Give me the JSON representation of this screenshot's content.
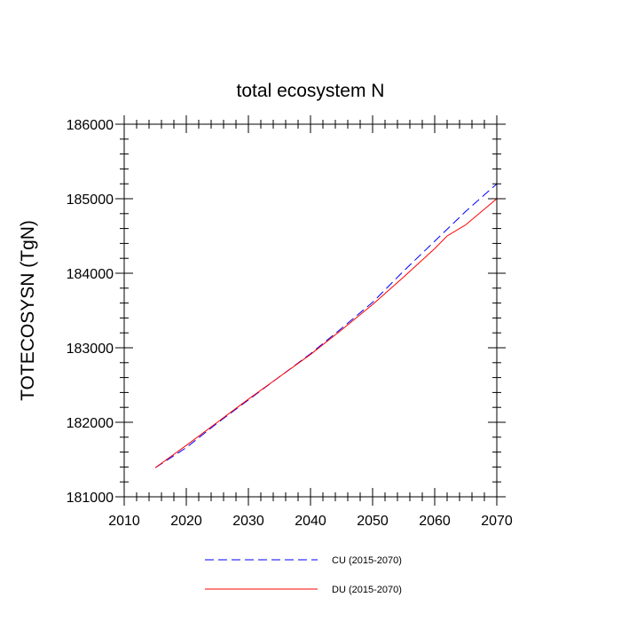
{
  "chart_data": {
    "type": "line",
    "title": "total ecosystem N",
    "xlabel": "",
    "ylabel": "TOTECOSYSN  (TgN)",
    "xlim": [
      2010,
      2070
    ],
    "ylim": [
      181000,
      186000
    ],
    "x_major_ticks": [
      2010,
      2020,
      2030,
      2040,
      2050,
      2060,
      2070
    ],
    "x_tick_labels": [
      "2010",
      "2020",
      "2030",
      "2040",
      "2050",
      "2060",
      "2070"
    ],
    "x_minor_step": 2,
    "y_major_ticks": [
      181000,
      182000,
      183000,
      184000,
      185000,
      186000
    ],
    "y_tick_labels": [
      "181000",
      "182000",
      "183000",
      "184000",
      "185000",
      "186000"
    ],
    "y_minor_step": 200,
    "grid": false,
    "legend_position": "bottom",
    "series": [
      {
        "name": "CU (2015-2070)",
        "color": "#0000ff",
        "style": "dashed",
        "x": [
          2015,
          2020,
          2025,
          2030,
          2035,
          2040,
          2045,
          2050,
          2055,
          2060,
          2065,
          2070
        ],
        "values": [
          181390,
          181660,
          181990,
          182300,
          182610,
          182920,
          183260,
          183610,
          184030,
          184430,
          184830,
          185200
        ]
      },
      {
        "name": "DU (2015-2070)",
        "color": "#ff0000",
        "style": "solid",
        "x": [
          2015,
          2020,
          2025,
          2030,
          2035,
          2040,
          2045,
          2050,
          2055,
          2060,
          2062,
          2065,
          2070
        ],
        "values": [
          181390,
          181690,
          182000,
          182310,
          182610,
          182910,
          183240,
          183580,
          183950,
          184330,
          184500,
          184650,
          185000
        ]
      }
    ]
  }
}
